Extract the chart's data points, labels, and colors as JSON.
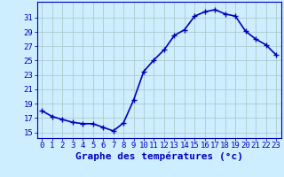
{
  "hours": [
    0,
    1,
    2,
    3,
    4,
    5,
    6,
    7,
    8,
    9,
    10,
    11,
    12,
    13,
    14,
    15,
    16,
    17,
    18,
    19,
    20,
    21,
    22,
    23
  ],
  "temps": [
    18.0,
    17.2,
    16.8,
    16.4,
    16.2,
    16.2,
    15.7,
    15.2,
    16.3,
    19.5,
    23.5,
    25.1,
    26.5,
    28.5,
    29.3,
    31.2,
    31.8,
    32.1,
    31.5,
    31.2,
    29.1,
    28.0,
    27.2,
    25.8
  ],
  "line_color": "#0000bb",
  "marker": "+",
  "markersize": 4,
  "bg_color": "#cceeff",
  "grid_color": "#aacccc",
  "axis_color": "#0000bb",
  "xlabel": "Graphe des températures (°c)",
  "ylabel_ticks": [
    15,
    17,
    19,
    21,
    23,
    25,
    27,
    29,
    31
  ],
  "ylim": [
    14.2,
    33.2
  ],
  "xlim": [
    -0.5,
    23.5
  ],
  "tick_fontsize": 6.5,
  "xlabel_fontsize": 8,
  "linewidth": 1.2,
  "markeredgewidth": 1.0
}
